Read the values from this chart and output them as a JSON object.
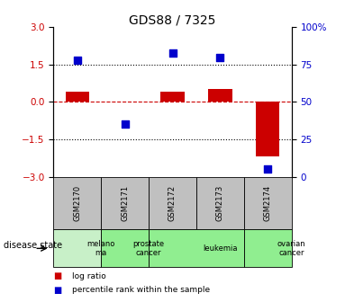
{
  "title": "GDS88 / 7325",
  "samples": [
    "GSM2170",
    "GSM2171",
    "GSM2172",
    "GSM2173",
    "GSM2174"
  ],
  "log_ratio": [
    0.42,
    0.0,
    0.42,
    0.52,
    -2.2
  ],
  "percentile_rank": [
    78,
    35,
    83,
    80,
    5
  ],
  "ylim_left": [
    -3,
    3
  ],
  "ylim_right": [
    0,
    100
  ],
  "yticks_left": [
    -3,
    -1.5,
    0,
    1.5,
    3
  ],
  "yticks_right": [
    0,
    25,
    50,
    75,
    100
  ],
  "hlines_dotted": [
    1.5,
    -1.5
  ],
  "hline_red": 0,
  "disease_states": [
    {
      "label": "melano\nma",
      "start": 0,
      "end": 1,
      "color": "#c8f0c8"
    },
    {
      "label": "prostate\ncancer",
      "start": 1,
      "end": 2,
      "color": "#90EE90"
    },
    {
      "label": "leukemia",
      "start": 2,
      "end": 4,
      "color": "#90EE90"
    },
    {
      "label": "ovarian\ncancer",
      "start": 4,
      "end": 5,
      "color": "#90EE90"
    }
  ],
  "bar_color": "#cc0000",
  "scatter_color": "#0000cc",
  "bar_width": 0.5,
  "scatter_size": 40,
  "tick_label_color_left": "#cc0000",
  "tick_label_color_right": "#0000cc",
  "legend_items": [
    {
      "label": "log ratio",
      "color": "#cc0000"
    },
    {
      "label": "percentile rank within the sample",
      "color": "#0000cc"
    }
  ],
  "disease_label": "disease state",
  "sample_box_color": "#c0c0c0"
}
